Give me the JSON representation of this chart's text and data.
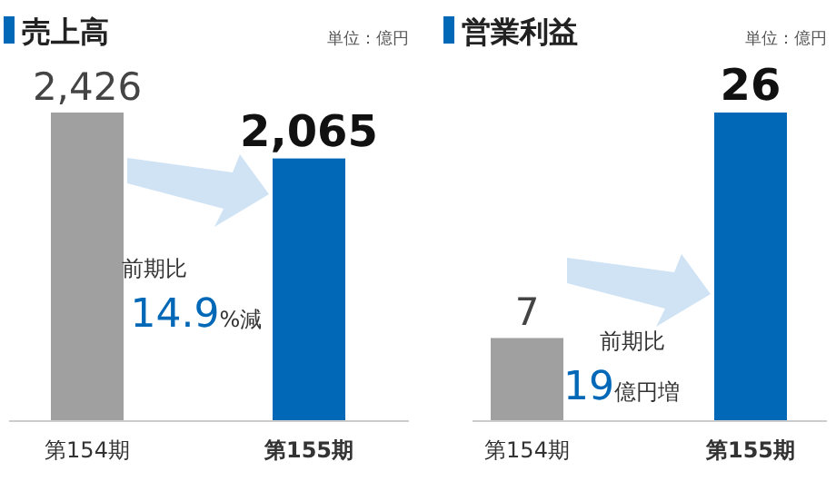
{
  "chart_data": [
    {
      "type": "bar",
      "title": "売上高",
      "categories": [
        "第154期",
        "第155期"
      ],
      "values": [
        2426,
        2065
      ],
      "colors": [
        "#a0a0a0",
        "#0068b7"
      ],
      "value_labels": [
        "2,426",
        "2,065"
      ],
      "annotations": [
        "単位：億円",
        "前期比",
        "14.9%減"
      ]
    },
    {
      "type": "bar",
      "title": "営業利益",
      "categories": [
        "第154期",
        "第155期"
      ],
      "values": [
        7,
        26
      ],
      "colors": [
        "#a0a0a0",
        "#0068b7"
      ],
      "value_labels": [
        "7",
        "26"
      ],
      "annotations": [
        "単位：億円",
        "前期比",
        "19億円増"
      ]
    }
  ]
}
